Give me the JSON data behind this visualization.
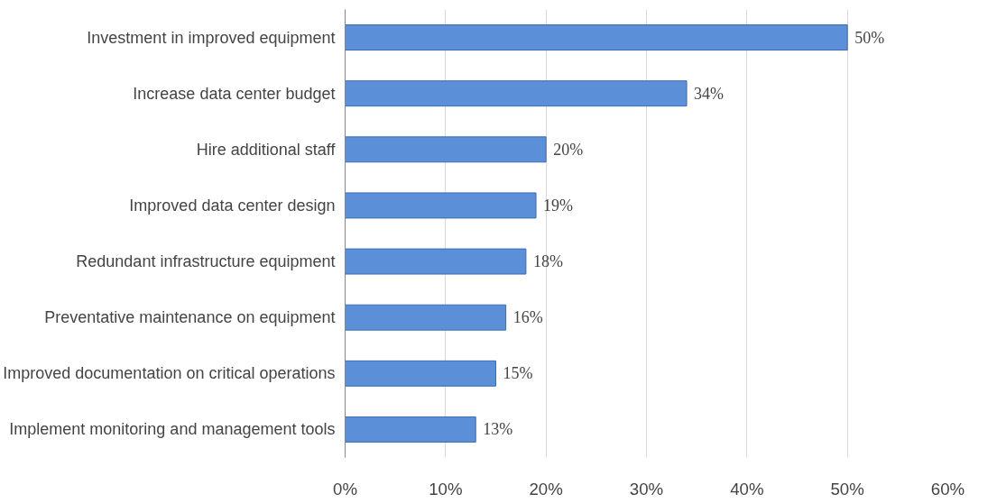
{
  "chart_data": {
    "type": "bar",
    "orientation": "horizontal",
    "categories": [
      "Investment in improved equipment",
      "Increase data center budget",
      "Hire additional staff",
      "Improved data center design",
      "Redundant infrastructure equipment",
      "Preventative maintenance on equipment",
      "Improved documentation on critical operations",
      "Implement monitoring and management tools"
    ],
    "values": [
      50,
      34,
      20,
      19,
      18,
      16,
      15,
      13
    ],
    "value_labels": [
      "50%",
      "34%",
      "20%",
      "19%",
      "18%",
      "16%",
      "15%",
      "13%"
    ],
    "color": "#5b8fd8",
    "xlim": [
      0,
      60
    ],
    "xticks": [
      {
        "value": 0,
        "label": "0%"
      },
      {
        "value": 10,
        "label": "10%"
      },
      {
        "value": 20,
        "label": "20%"
      },
      {
        "value": 30,
        "label": "30%"
      },
      {
        "value": 40,
        "label": "40%"
      },
      {
        "value": 50,
        "label": "50%"
      },
      {
        "value": 60,
        "label": "60%"
      }
    ],
    "grid": "x"
  }
}
